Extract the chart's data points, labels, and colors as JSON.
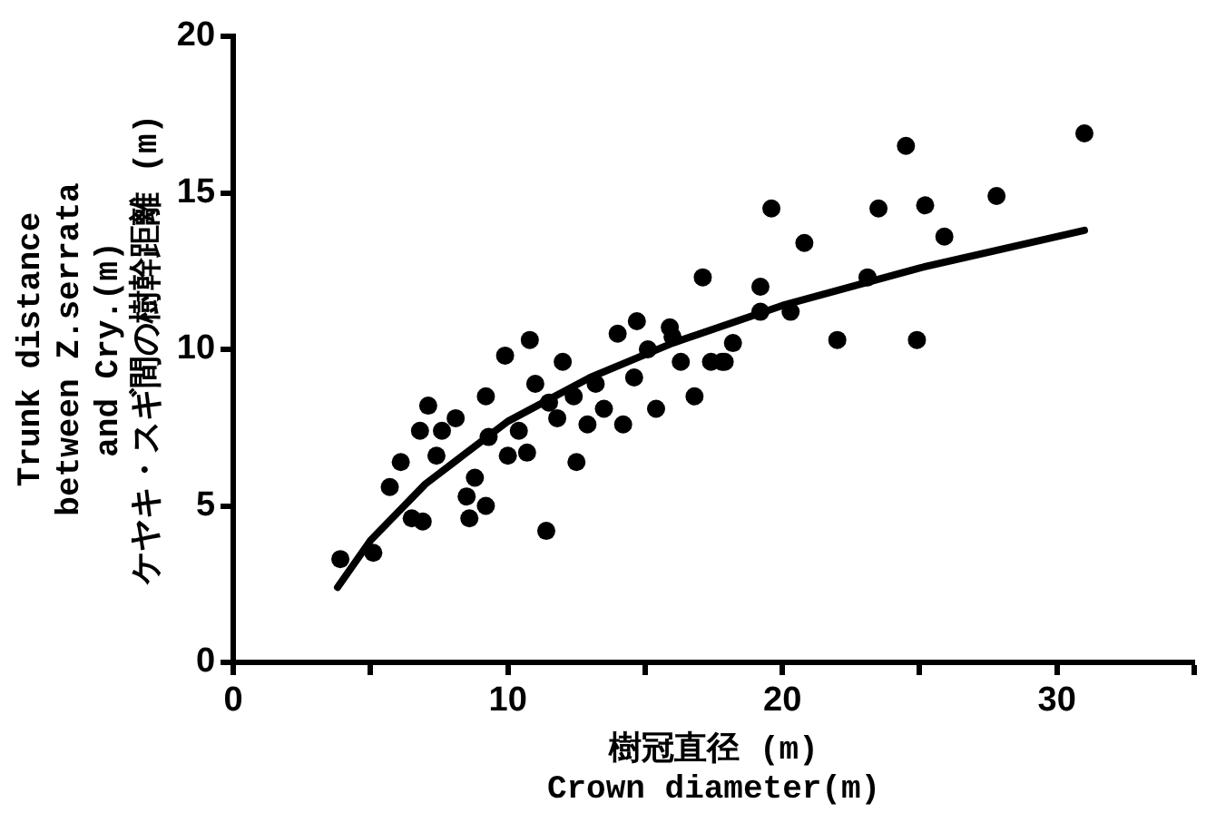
{
  "chart_data": {
    "type": "scatter",
    "xlabel": "樹冠直径 (m)\nCrown diameter(m)",
    "ylabel": "Trunk distance\nbetween Z.serrata\nand Cry.(m)\nケヤキ・スギ間の樹幹距離 (m)",
    "xlim": [
      0,
      35
    ],
    "xticks": [
      0,
      {
        "value": 5,
        "label": null
      },
      10,
      {
        "value": 15,
        "label": null
      },
      20,
      {
        "value": 25,
        "label": null
      },
      30,
      {
        "value": 35,
        "label": null
      }
    ],
    "ylim": [
      0,
      20
    ],
    "yticks": [
      0,
      5,
      10,
      15,
      20
    ],
    "grid": false,
    "legend": false,
    "marker": "circle",
    "series": [
      {
        "color": "#000000",
        "x": [
          3.9,
          5.1,
          5.7,
          6.1,
          6.5,
          6.9,
          7.1,
          6.8,
          7.6,
          7.4,
          8.1,
          8.5,
          8.8,
          8.6,
          9.2,
          9.2,
          9.3,
          9.9,
          10.0,
          10.4,
          10.7,
          10.8,
          11.0,
          11.4,
          11.5,
          11.8,
          12.0,
          12.4,
          12.5,
          12.9,
          13.2,
          13.5,
          14.0,
          14.2,
          14.6,
          14.7,
          15.1,
          15.4,
          15.9,
          16.3,
          16.8,
          17.1,
          17.4,
          17.8,
          16.0,
          17.9,
          18.2,
          19.2,
          19.2,
          19.6,
          20.3,
          20.8,
          22.0,
          23.1,
          23.5,
          24.5,
          24.9,
          25.2,
          25.9,
          27.8,
          31.0
        ],
        "values": [
          3.3,
          3.5,
          5.6,
          6.4,
          4.6,
          4.5,
          8.2,
          7.4,
          7.4,
          6.6,
          7.8,
          5.3,
          5.9,
          4.6,
          5.0,
          8.5,
          7.2,
          9.8,
          6.6,
          7.4,
          6.7,
          10.3,
          8.9,
          4.2,
          8.3,
          7.8,
          9.6,
          8.5,
          6.4,
          7.6,
          8.9,
          8.1,
          10.5,
          7.6,
          9.1,
          10.9,
          10.0,
          8.1,
          10.7,
          9.6,
          8.5,
          12.3,
          9.6,
          9.6,
          10.4,
          9.6,
          10.2,
          12.0,
          11.2,
          14.5,
          11.2,
          13.4,
          10.3,
          12.3,
          14.5,
          16.5,
          10.3,
          14.6,
          13.6,
          14.9,
          16.9
        ]
      },
      {
        "type": "line",
        "color": "#000000",
        "marker": "none",
        "x": [
          3.8,
          5,
          7,
          10,
          13,
          16,
          20,
          25,
          31
        ],
        "values": [
          2.4,
          3.9,
          5.7,
          7.7,
          9.1,
          10.2,
          11.4,
          12.6,
          13.8
        ]
      }
    ]
  }
}
